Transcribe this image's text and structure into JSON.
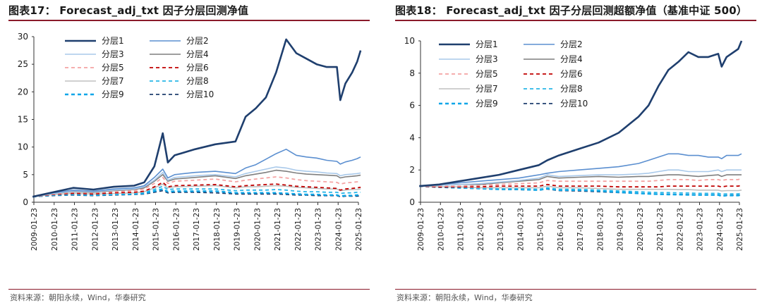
{
  "left": {
    "title": "图表17：  Forecast_adj_txt 因子分层回测净值",
    "source": "资料来源：朝阳永续，Wind，华泰研究"
  },
  "right": {
    "title": "图表18：  Forecast_adj_txt 因子分层回测超额净值（基准中证 500）",
    "source": "资料来源：朝阳永续，Wind，华泰研究"
  },
  "colors": {
    "layer1": "#1f3f6e",
    "layer2": "#5b8fd0",
    "layer3": "#a9c9ea",
    "layer4": "#7f7f7f",
    "layer5": "#f4a3a3",
    "layer6": "#c00000",
    "layer7": "#c0c0c0",
    "layer8": "#29b6e8",
    "layer9": "#0aa6e8",
    "layer10": "#1f3f6e",
    "rule": "#8a1a2a"
  },
  "chart_data": [
    {
      "type": "line",
      "x_ticks": [
        "2009-01-23",
        "2010-01-23",
        "2011-01-23",
        "2012-01-23",
        "2013-01-23",
        "2014-01-23",
        "2015-01-23",
        "2016-01-23",
        "2017-01-23",
        "2018-01-23",
        "2019-01-23",
        "2020-01-23",
        "2021-01-23",
        "2022-01-23",
        "2023-01-23",
        "2024-01-23",
        "2025-01-23"
      ],
      "ylim": [
        0,
        30
      ],
      "y_ticks": [
        0,
        5,
        10,
        15,
        20,
        25,
        30
      ],
      "legend_position": "top-left",
      "x_dates": [
        "2009-01",
        "2010-01",
        "2011-01",
        "2012-01",
        "2013-01",
        "2014-01",
        "2014-07",
        "2015-01",
        "2015-06",
        "2015-09",
        "2016-01",
        "2017-01",
        "2018-01",
        "2019-01",
        "2019-07",
        "2020-01",
        "2020-07",
        "2021-01",
        "2021-07",
        "2022-01",
        "2022-07",
        "2023-01",
        "2023-07",
        "2024-01",
        "2024-03",
        "2024-06",
        "2024-10",
        "2025-01",
        "2025-03"
      ],
      "series": [
        {
          "name": "分层1",
          "style": "solid-thick",
          "values": [
            1.0,
            1.8,
            2.6,
            2.3,
            2.8,
            3.0,
            3.6,
            6.5,
            12.5,
            7.2,
            8.5,
            9.6,
            10.5,
            11.0,
            15.5,
            17.0,
            19.0,
            23.5,
            29.5,
            27.0,
            26.0,
            25.0,
            24.5,
            24.5,
            18.5,
            21.5,
            23.5,
            25.5,
            27.5
          ]
        },
        {
          "name": "分层2",
          "style": "solid",
          "values": [
            1.0,
            1.7,
            2.2,
            2.0,
            2.4,
            2.6,
            3.0,
            4.5,
            6.0,
            4.4,
            5.0,
            5.4,
            5.6,
            5.2,
            6.2,
            6.8,
            7.8,
            8.8,
            9.6,
            8.5,
            8.2,
            8.0,
            7.6,
            7.4,
            6.9,
            7.3,
            7.6,
            7.9,
            8.2
          ]
        },
        {
          "name": "分层3",
          "style": "solid",
          "values": [
            1.0,
            1.6,
            2.0,
            1.9,
            2.2,
            2.4,
            2.8,
            4.0,
            5.4,
            4.0,
            4.5,
            4.8,
            5.0,
            4.6,
            5.2,
            5.6,
            6.0,
            6.4,
            6.2,
            5.8,
            5.6,
            5.5,
            5.3,
            5.2,
            4.8,
            5.0,
            5.1,
            5.2,
            5.3
          ]
        },
        {
          "name": "分层4",
          "style": "solid",
          "values": [
            1.0,
            1.6,
            1.9,
            1.8,
            2.1,
            2.3,
            2.6,
            3.8,
            5.0,
            3.8,
            4.2,
            4.5,
            4.8,
            4.3,
            4.8,
            5.1,
            5.4,
            5.8,
            5.6,
            5.3,
            5.1,
            5.0,
            4.9,
            4.8,
            4.4,
            4.6,
            4.7,
            4.8,
            4.9
          ]
        },
        {
          "name": "分层5",
          "style": "dashed",
          "values": [
            1.0,
            1.5,
            1.8,
            1.7,
            1.9,
            2.1,
            2.4,
            3.4,
            4.5,
            3.4,
            3.8,
            4.0,
            4.2,
            3.7,
            4.0,
            4.2,
            4.4,
            4.6,
            4.4,
            4.1,
            3.9,
            3.8,
            3.7,
            3.6,
            3.3,
            3.5,
            3.6,
            3.7,
            3.8
          ]
        },
        {
          "name": "分层6",
          "style": "dashed",
          "values": [
            1.0,
            1.4,
            1.6,
            1.5,
            1.7,
            1.8,
            2.0,
            2.8,
            3.6,
            2.8,
            3.0,
            3.1,
            3.2,
            2.8,
            3.0,
            3.1,
            3.2,
            3.3,
            3.1,
            2.9,
            2.8,
            2.7,
            2.6,
            2.5,
            2.2,
            2.4,
            2.5,
            2.6,
            2.7
          ]
        },
        {
          "name": "分层7",
          "style": "solid",
          "values": [
            1.0,
            1.4,
            1.6,
            1.5,
            1.6,
            1.7,
            1.9,
            2.6,
            3.3,
            2.6,
            2.8,
            2.9,
            3.0,
            2.6,
            2.8,
            2.8,
            2.9,
            3.0,
            2.9,
            2.7,
            2.6,
            2.5,
            2.4,
            2.4,
            2.1,
            2.2,
            2.3,
            2.3,
            2.4
          ]
        },
        {
          "name": "分层8",
          "style": "dashed",
          "values": [
            1.0,
            1.3,
            1.5,
            1.4,
            1.5,
            1.6,
            1.8,
            2.3,
            2.9,
            2.3,
            2.4,
            2.4,
            2.4,
            2.1,
            2.2,
            2.2,
            2.2,
            2.3,
            2.2,
            2.0,
            1.9,
            1.9,
            1.8,
            1.8,
            1.6,
            1.7,
            1.7,
            1.8,
            1.8
          ]
        },
        {
          "name": "分层9",
          "style": "dashed-thick",
          "values": [
            1.0,
            1.3,
            1.4,
            1.3,
            1.4,
            1.5,
            1.6,
            2.0,
            2.4,
            1.9,
            2.0,
            2.0,
            2.0,
            1.7,
            1.7,
            1.7,
            1.7,
            1.7,
            1.6,
            1.5,
            1.4,
            1.4,
            1.3,
            1.3,
            1.1,
            1.2,
            1.2,
            1.3,
            1.3
          ]
        },
        {
          "name": "分层10",
          "style": "dashed",
          "values": [
            1.0,
            1.2,
            1.3,
            1.2,
            1.3,
            1.4,
            1.5,
            1.8,
            2.1,
            1.7,
            1.8,
            1.8,
            1.7,
            1.5,
            1.5,
            1.5,
            1.5,
            1.5,
            1.4,
            1.3,
            1.3,
            1.2,
            1.2,
            1.2,
            1.0,
            1.1,
            1.1,
            1.1,
            1.2
          ]
        }
      ]
    },
    {
      "type": "line",
      "x_ticks": [
        "2009-01-23",
        "2010-01-23",
        "2011-01-23",
        "2012-01-23",
        "2013-01-23",
        "2014-01-23",
        "2015-01-23",
        "2016-01-23",
        "2017-01-23",
        "2018-01-23",
        "2019-01-23",
        "2020-01-23",
        "2021-01-23",
        "2022-01-23",
        "2023-01-23",
        "2024-01-23",
        "2025-01-23"
      ],
      "ylim": [
        0,
        10
      ],
      "y_ticks": [
        0,
        2,
        4,
        6,
        8,
        10
      ],
      "legend_position": "top-left",
      "x_dates": [
        "2009-01",
        "2010-01",
        "2011-01",
        "2012-01",
        "2013-01",
        "2014-01",
        "2015-01",
        "2015-06",
        "2016-01",
        "2017-01",
        "2018-01",
        "2019-01",
        "2020-01",
        "2020-07",
        "2021-01",
        "2021-07",
        "2022-01",
        "2022-07",
        "2023-01",
        "2023-07",
        "2024-01",
        "2024-03",
        "2024-06",
        "2025-01",
        "2025-03"
      ],
      "series": [
        {
          "name": "分层1",
          "style": "solid-thick",
          "values": [
            1.0,
            1.1,
            1.3,
            1.5,
            1.7,
            2.0,
            2.3,
            2.6,
            2.9,
            3.3,
            3.7,
            4.3,
            5.3,
            6.0,
            7.2,
            8.2,
            8.7,
            9.3,
            9.0,
            9.0,
            9.2,
            8.4,
            9.0,
            9.5,
            10.0
          ]
        },
        {
          "name": "分层2",
          "style": "solid",
          "values": [
            1.0,
            1.1,
            1.2,
            1.3,
            1.4,
            1.5,
            1.7,
            1.8,
            1.9,
            2.0,
            2.1,
            2.2,
            2.4,
            2.6,
            2.8,
            3.0,
            3.0,
            2.9,
            2.9,
            2.8,
            2.8,
            2.7,
            2.9,
            2.9,
            3.0
          ]
        },
        {
          "name": "分层3",
          "style": "solid",
          "values": [
            1.0,
            1.05,
            1.1,
            1.15,
            1.25,
            1.35,
            1.5,
            1.7,
            1.6,
            1.65,
            1.7,
            1.7,
            1.75,
            1.8,
            1.9,
            2.0,
            2.0,
            1.9,
            1.9,
            1.9,
            2.0,
            1.9,
            2.0,
            2.0,
            2.0
          ]
        },
        {
          "name": "分层4",
          "style": "solid",
          "values": [
            1.0,
            1.05,
            1.1,
            1.1,
            1.2,
            1.3,
            1.4,
            1.6,
            1.5,
            1.55,
            1.6,
            1.55,
            1.6,
            1.6,
            1.65,
            1.7,
            1.7,
            1.65,
            1.6,
            1.65,
            1.7,
            1.6,
            1.7,
            1.7,
            1.7
          ]
        },
        {
          "name": "分层5",
          "style": "dashed",
          "values": [
            1.0,
            1.0,
            1.0,
            1.05,
            1.1,
            1.15,
            1.2,
            1.35,
            1.3,
            1.3,
            1.3,
            1.3,
            1.3,
            1.3,
            1.35,
            1.4,
            1.4,
            1.4,
            1.35,
            1.4,
            1.4,
            1.35,
            1.4,
            1.4,
            1.5
          ]
        },
        {
          "name": "分层6",
          "style": "dashed",
          "values": [
            1.0,
            0.95,
            0.95,
            0.95,
            1.0,
            1.0,
            1.0,
            1.1,
            1.0,
            1.0,
            1.0,
            0.95,
            0.95,
            0.95,
            0.95,
            1.0,
            1.0,
            1.0,
            1.0,
            1.0,
            1.0,
            0.95,
            1.0,
            1.0,
            1.05
          ]
        },
        {
          "name": "分层7",
          "style": "solid",
          "values": [
            1.0,
            0.95,
            0.95,
            0.9,
            0.9,
            0.9,
            0.9,
            1.0,
            0.9,
            0.9,
            0.85,
            0.8,
            0.8,
            0.8,
            0.8,
            0.8,
            0.78,
            0.78,
            0.75,
            0.75,
            0.75,
            0.7,
            0.72,
            0.72,
            0.75
          ]
        },
        {
          "name": "分层8",
          "style": "dashed",
          "values": [
            1.0,
            0.95,
            0.9,
            0.9,
            0.85,
            0.85,
            0.8,
            0.9,
            0.8,
            0.8,
            0.75,
            0.7,
            0.65,
            0.62,
            0.6,
            0.6,
            0.58,
            0.57,
            0.55,
            0.55,
            0.55,
            0.5,
            0.52,
            0.52,
            0.55
          ]
        },
        {
          "name": "分层9",
          "style": "dashed-thick",
          "values": [
            1.0,
            0.95,
            0.9,
            0.85,
            0.8,
            0.8,
            0.75,
            0.85,
            0.75,
            0.75,
            0.7,
            0.62,
            0.55,
            0.52,
            0.5,
            0.48,
            0.47,
            0.46,
            0.45,
            0.45,
            0.45,
            0.38,
            0.42,
            0.42,
            0.45
          ]
        },
        {
          "name": "分层10",
          "style": "dashed",
          "values": [
            1.0,
            0.92,
            0.88,
            0.85,
            0.8,
            0.78,
            0.75,
            0.82,
            0.72,
            0.7,
            0.65,
            0.6,
            0.55,
            0.52,
            0.5,
            0.5,
            0.48,
            0.47,
            0.46,
            0.46,
            0.45,
            0.4,
            0.43,
            0.43,
            0.46
          ]
        }
      ]
    }
  ]
}
